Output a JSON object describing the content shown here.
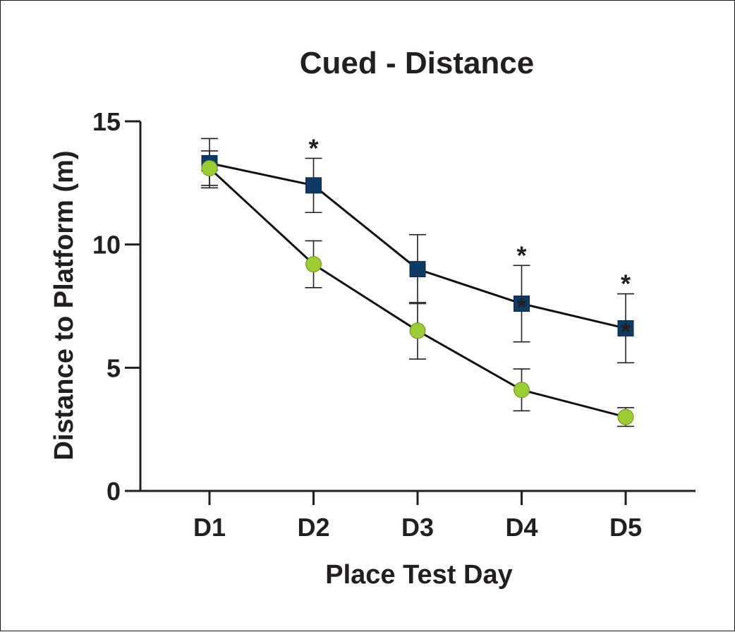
{
  "chart_data": {
    "type": "line",
    "title": "Cued - Distance",
    "xlabel": "Place Test  Day",
    "ylabel": "Distance to Platform (m)",
    "categories": [
      "D1",
      "D2",
      "D3",
      "D4",
      "D5"
    ],
    "ylim": [
      0,
      15
    ],
    "yticks": [
      0,
      5,
      10,
      15
    ],
    "grid": false,
    "series": [
      {
        "name": "square-series",
        "marker": "square",
        "color": "#0d3b66",
        "values": [
          13.3,
          12.4,
          9.0,
          7.6,
          6.6
        ],
        "err": [
          1.0,
          1.1,
          1.4,
          1.55,
          1.4
        ]
      },
      {
        "name": "circle-series",
        "marker": "circle",
        "color": "#9acd32",
        "values": [
          13.1,
          9.2,
          6.5,
          4.1,
          3.0
        ],
        "err": [
          0.7,
          0.95,
          1.15,
          0.85,
          0.38
        ]
      }
    ],
    "annotations": [
      {
        "category": "D2",
        "text": "*",
        "position": "above"
      },
      {
        "category": "D4",
        "text": "*",
        "position": "above"
      },
      {
        "category": "D4",
        "text": "*",
        "position": "on-point"
      },
      {
        "category": "D5",
        "text": "*",
        "position": "above"
      },
      {
        "category": "D5",
        "text": "*",
        "position": "on-point"
      }
    ]
  }
}
